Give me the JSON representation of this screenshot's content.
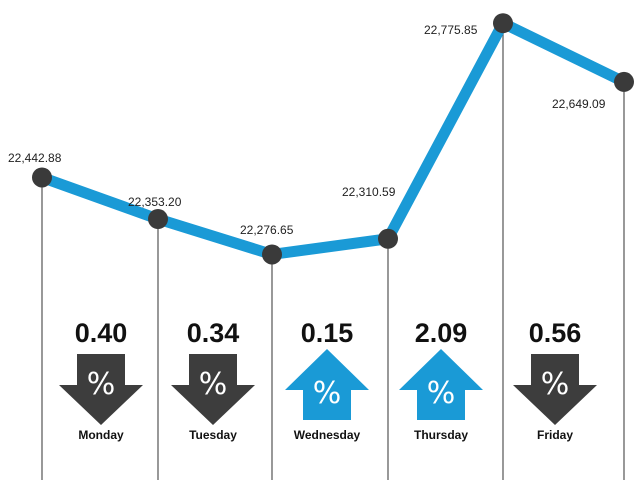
{
  "chart_data": {
    "type": "line",
    "title": "",
    "xlabel": "",
    "ylabel": "",
    "ylim": [
      22200,
      22800
    ],
    "grid": false,
    "categories": [
      "Monday",
      "Tuesday",
      "Wednesday",
      "Thursday",
      "Friday",
      ""
    ],
    "series": [
      {
        "values": [
          22442.88,
          22353.2,
          22276.65,
          22310.59,
          22775.85,
          22649.09
        ],
        "value_labels": [
          "22,442.88",
          "22,353.20",
          "22,276.65",
          "22,310.59",
          "22,775.85",
          "22,649.09"
        ]
      }
    ],
    "daily_changes": [
      {
        "day": "Monday",
        "percent": "0.40",
        "direction": "down",
        "symbol": "%"
      },
      {
        "day": "Tuesday",
        "percent": "0.34",
        "direction": "down",
        "symbol": "%"
      },
      {
        "day": "Wednesday",
        "percent": "0.15",
        "direction": "up",
        "symbol": "%"
      },
      {
        "day": "Thursday",
        "percent": "2.09",
        "direction": "up",
        "symbol": "%"
      },
      {
        "day": "Friday",
        "percent": "0.56",
        "direction": "down",
        "symbol": "%"
      }
    ]
  },
  "colors": {
    "line": "#1a9ad6",
    "marker": "#3a3a3a",
    "down_arrow": "#3d3d3d",
    "up_arrow": "#1a9ad6",
    "drop_line": "#555555"
  }
}
